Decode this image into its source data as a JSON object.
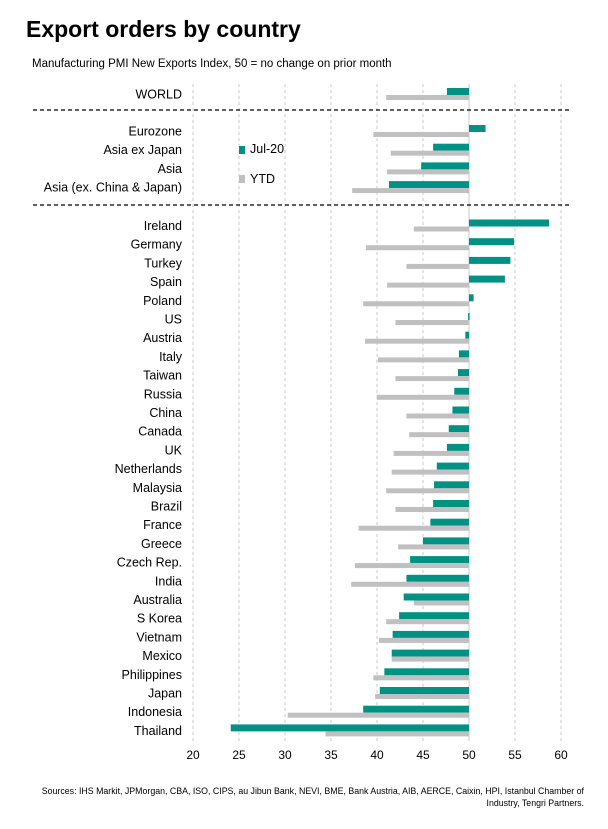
{
  "title": "Export orders by country",
  "subtitle": "Manufacturing PMI New Exports Index, 50 = no change on prior month",
  "sources": "Sources: IHS Markit, JPMorgan, CBA, ISO, CIPS, au Jibun Bank, NEVI, BME, Bank Austria, AIB, AERCE, Caixin, HPI, Istanbul Chamber of Industry, Tengri Partners.",
  "colors": {
    "jul20": "#009185",
    "ytd": "#c0c0c0"
  },
  "chart_data": {
    "type": "bar",
    "orientation": "horizontal",
    "title": "Export orders by country",
    "subtitle": "Manufacturing PMI New Exports Index, 50 = no change on prior month",
    "xlim": [
      20,
      60
    ],
    "xticks": [
      "20",
      "25",
      "30",
      "35",
      "40",
      "45",
      "50",
      "55",
      "60"
    ],
    "grid": "vertical dashed",
    "legend_position": "upper-center",
    "categories": [
      "WORLD",
      "Eurozone",
      "Asia ex Japan",
      "Asia",
      "Asia (ex. China & Japan)",
      "Ireland",
      "Germany",
      "Turkey",
      "Spain",
      "Poland",
      "US",
      "Austria",
      "Italy",
      "Taiwan",
      "Russia",
      "China",
      "Canada",
      "UK",
      "Netherlands",
      "Malaysia",
      "Brazil",
      "France",
      "Greece",
      "Czech Rep.",
      "India",
      "Australia",
      "S Korea",
      "Vietnam",
      "Mexico",
      "Philippines",
      "Japan",
      "Indonesia",
      "Thailand"
    ],
    "group_breaks_after": [
      "WORLD",
      "Asia (ex. China & Japan)"
    ],
    "series": [
      {
        "name": "Jul-20",
        "values": [
          47.6,
          51.8,
          46.1,
          44.8,
          41.3,
          58.7,
          54.9,
          54.5,
          53.9,
          50.5,
          49.9,
          49.6,
          48.9,
          48.8,
          48.4,
          48.2,
          47.8,
          47.6,
          46.5,
          46.2,
          46.1,
          45.8,
          45.0,
          43.6,
          43.2,
          42.9,
          42.4,
          41.7,
          41.6,
          40.8,
          40.3,
          38.5,
          24.1
        ]
      },
      {
        "name": "YTD",
        "values": [
          41.0,
          39.6,
          41.5,
          41.1,
          37.3,
          44.0,
          38.8,
          43.2,
          41.1,
          38.5,
          42.0,
          38.7,
          40.1,
          42.0,
          40.0,
          43.2,
          43.5,
          41.8,
          41.6,
          41.0,
          42.0,
          38.0,
          42.3,
          37.6,
          37.2,
          44.0,
          41.0,
          40.2,
          41.6,
          39.6,
          39.8,
          30.3,
          34.4
        ]
      }
    ]
  }
}
